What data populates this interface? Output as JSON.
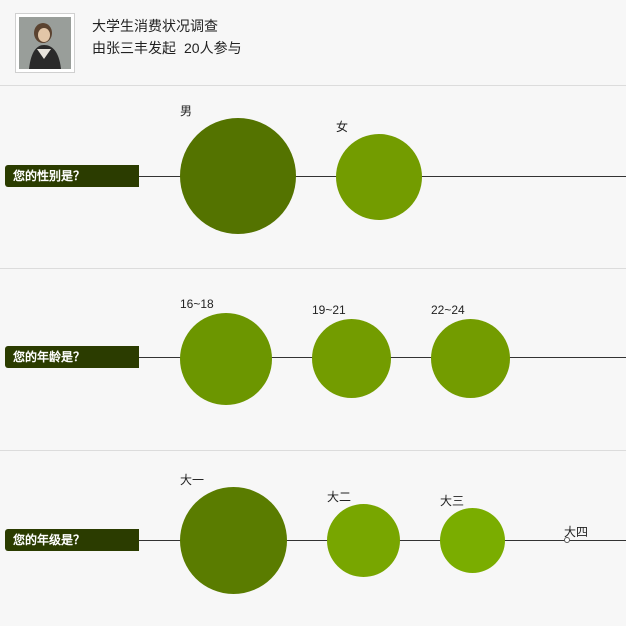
{
  "header": {
    "title": "大学生消费状况调查",
    "initiator": "由张三丰发起",
    "participants": "20人参与"
  },
  "questions": [
    {
      "label": "您的性别是？",
      "options": [
        {
          "label": "男",
          "color": "#547300"
        },
        {
          "label": "女",
          "color": "#739c00"
        }
      ]
    },
    {
      "label": "您的年龄是？",
      "options": [
        {
          "label": "16~18",
          "color": "#6c9600"
        },
        {
          "label": "19~21",
          "color": "#739c00"
        },
        {
          "label": "22~24",
          "color": "#739c00"
        }
      ]
    },
    {
      "label": "您的年级是？",
      "options": [
        {
          "label": "大一",
          "color": "#5a7c00"
        },
        {
          "label": "大二",
          "color": "#78a600"
        },
        {
          "label": "大三",
          "color": "#7aad00"
        },
        {
          "label": "大四",
          "color": "#ffffff"
        }
      ]
    }
  ]
}
